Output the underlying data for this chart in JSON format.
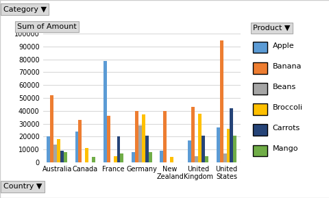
{
  "categories": [
    "Australia",
    "Canada",
    "France",
    "Germany",
    "New\nZealand",
    "United\nKingdom",
    "United\nStates"
  ],
  "products": [
    "Apple",
    "Banana",
    "Beans",
    "Broccoli",
    "Carrots",
    "Mango"
  ],
  "colors": [
    "#4472C4",
    "#ED7D31",
    "#A5A5A5",
    "#FFC000",
    "#4472C4",
    "#70AD47"
  ],
  "bar_colors": {
    "Apple": "#5B9BD5",
    "Banana": "#ED7D31",
    "Beans": "#A5A5A5",
    "Broccoli": "#FFC000",
    "Carrots": "#264478",
    "Mango": "#70AD47"
  },
  "data": {
    "Apple": [
      20000,
      24000,
      79000,
      8000,
      9000,
      17000,
      27000
    ],
    "Banana": [
      52000,
      33000,
      36000,
      40000,
      40000,
      43000,
      95000
    ],
    "Beans": [
      14000,
      0,
      0,
      29000,
      0,
      5000,
      7000
    ],
    "Broccoli": [
      18000,
      11000,
      5000,
      37000,
      4000,
      38000,
      26000
    ],
    "Carrots": [
      9000,
      0,
      20000,
      21000,
      0,
      21000,
      42000
    ],
    "Mango": [
      8000,
      4000,
      7000,
      8000,
      0,
      5000,
      21000
    ]
  },
  "ylim": [
    0,
    100000
  ],
  "yticks": [
    0,
    10000,
    20000,
    30000,
    40000,
    50000,
    60000,
    70000,
    80000,
    90000,
    100000
  ],
  "ytick_labels": [
    "0",
    "10000",
    "20000",
    "30000",
    "40000",
    "50000",
    "60000",
    "70000",
    "80000",
    "90000",
    "100000"
  ],
  "ylabel": "Sum of Amount",
  "title_top": "Category",
  "title_bottom": "Country",
  "legend_title": "Product",
  "background_color": "#FFFFFF",
  "plot_bg_color": "#FFFFFF",
  "grid_color": "#D9D9D9"
}
